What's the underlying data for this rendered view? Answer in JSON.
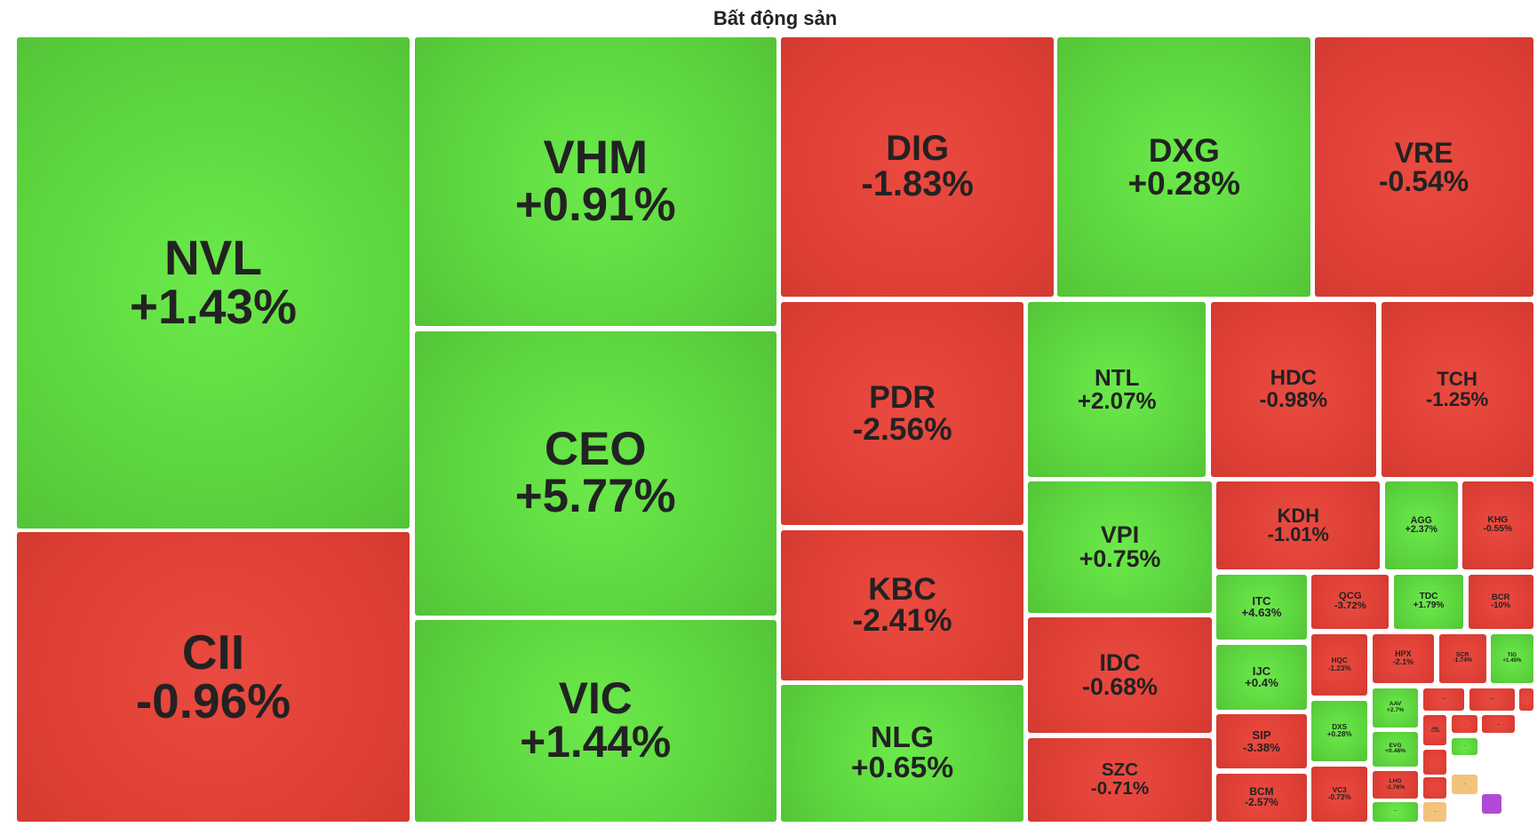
{
  "header": {
    "title": "Bất động sản"
  },
  "tiles": [
    {
      "label": "NVL",
      "change": "+1.43%",
      "color": "green"
    },
    {
      "label": "CII",
      "change": "-0.96%",
      "color": "red"
    },
    {
      "label": "VHM",
      "change": "+0.91%",
      "color": "green"
    },
    {
      "label": "CEO",
      "change": "+5.77%",
      "color": "green"
    },
    {
      "label": "VIC",
      "change": "+1.44%",
      "color": "green"
    },
    {
      "label": "DIG",
      "change": "-1.83%",
      "color": "red"
    },
    {
      "label": "DXG",
      "change": "+0.28%",
      "color": "green"
    },
    {
      "label": "VRE",
      "change": "-0.54%",
      "color": "red"
    },
    {
      "label": "PDR",
      "change": "-2.56%",
      "color": "red"
    },
    {
      "label": "KBC",
      "change": "-2.41%",
      "color": "red"
    },
    {
      "label": "NLG",
      "change": "+0.65%",
      "color": "green"
    },
    {
      "label": "NTL",
      "change": "+2.07%",
      "color": "green"
    },
    {
      "label": "HDC",
      "change": "-0.98%",
      "color": "red"
    },
    {
      "label": "TCH",
      "change": "-1.25%",
      "color": "red"
    },
    {
      "label": "VPI",
      "change": "+0.75%",
      "color": "green"
    },
    {
      "label": "IDC",
      "change": "-0.68%",
      "color": "red"
    },
    {
      "label": "SZC",
      "change": "-0.71%",
      "color": "red"
    },
    {
      "label": "KDH",
      "change": "-1.01%",
      "color": "red"
    },
    {
      "label": "AGG",
      "change": "+2.37%",
      "color": "green"
    },
    {
      "label": "KHG",
      "change": "-0.55%",
      "color": "red"
    },
    {
      "label": "ITC",
      "change": "+4.63%",
      "color": "green"
    },
    {
      "label": "QCG",
      "change": "-3.72%",
      "color": "red"
    },
    {
      "label": "TDC",
      "change": "+1.79%",
      "color": "green"
    },
    {
      "label": "BCR",
      "change": "-10%",
      "color": "red"
    },
    {
      "label": "IJC",
      "change": "+0.4%",
      "color": "green"
    },
    {
      "label": "SIP",
      "change": "-3.38%",
      "color": "red"
    },
    {
      "label": "BCM",
      "change": "-2.57%",
      "color": "red"
    },
    {
      "label": "HQC",
      "change": "-1.23%",
      "color": "red"
    },
    {
      "label": "HPX",
      "change": "-2.1%",
      "color": "red"
    },
    {
      "label": "SCR",
      "change": "-1.74%",
      "color": "red"
    },
    {
      "label": "TIG",
      "change": "+1.45%",
      "color": "green"
    },
    {
      "label": "DXS",
      "change": "+0.28%",
      "color": "green"
    },
    {
      "label": "VC3",
      "change": "-0.73%",
      "color": "red"
    },
    {
      "label": "AAV",
      "change": "+2.7%",
      "color": "green"
    },
    {
      "label": "EVG",
      "change": "+0.48%",
      "color": "green"
    },
    {
      "label": "LHG",
      "change": "-1.76%",
      "color": "red"
    },
    {
      "label": "NBB",
      "change": "-0.44%",
      "color": "red"
    },
    {
      "label": "...",
      "color": "red"
    },
    {
      "label": "...",
      "color": "red"
    },
    {
      "label": "...",
      "color": "red"
    },
    {
      "label": "...",
      "color": "green"
    },
    {
      "label": "...",
      "color": "red"
    },
    {
      "label": "...",
      "color": "red"
    },
    {
      "label": "...",
      "color": "orange"
    },
    {
      "label": "...",
      "color": "red"
    },
    {
      "label": "...",
      "color": "red"
    },
    {
      "label": "...",
      "color": "green"
    },
    {
      "label": "...",
      "color": "orange"
    },
    {
      "label": "...",
      "color": "purple"
    }
  ]
}
